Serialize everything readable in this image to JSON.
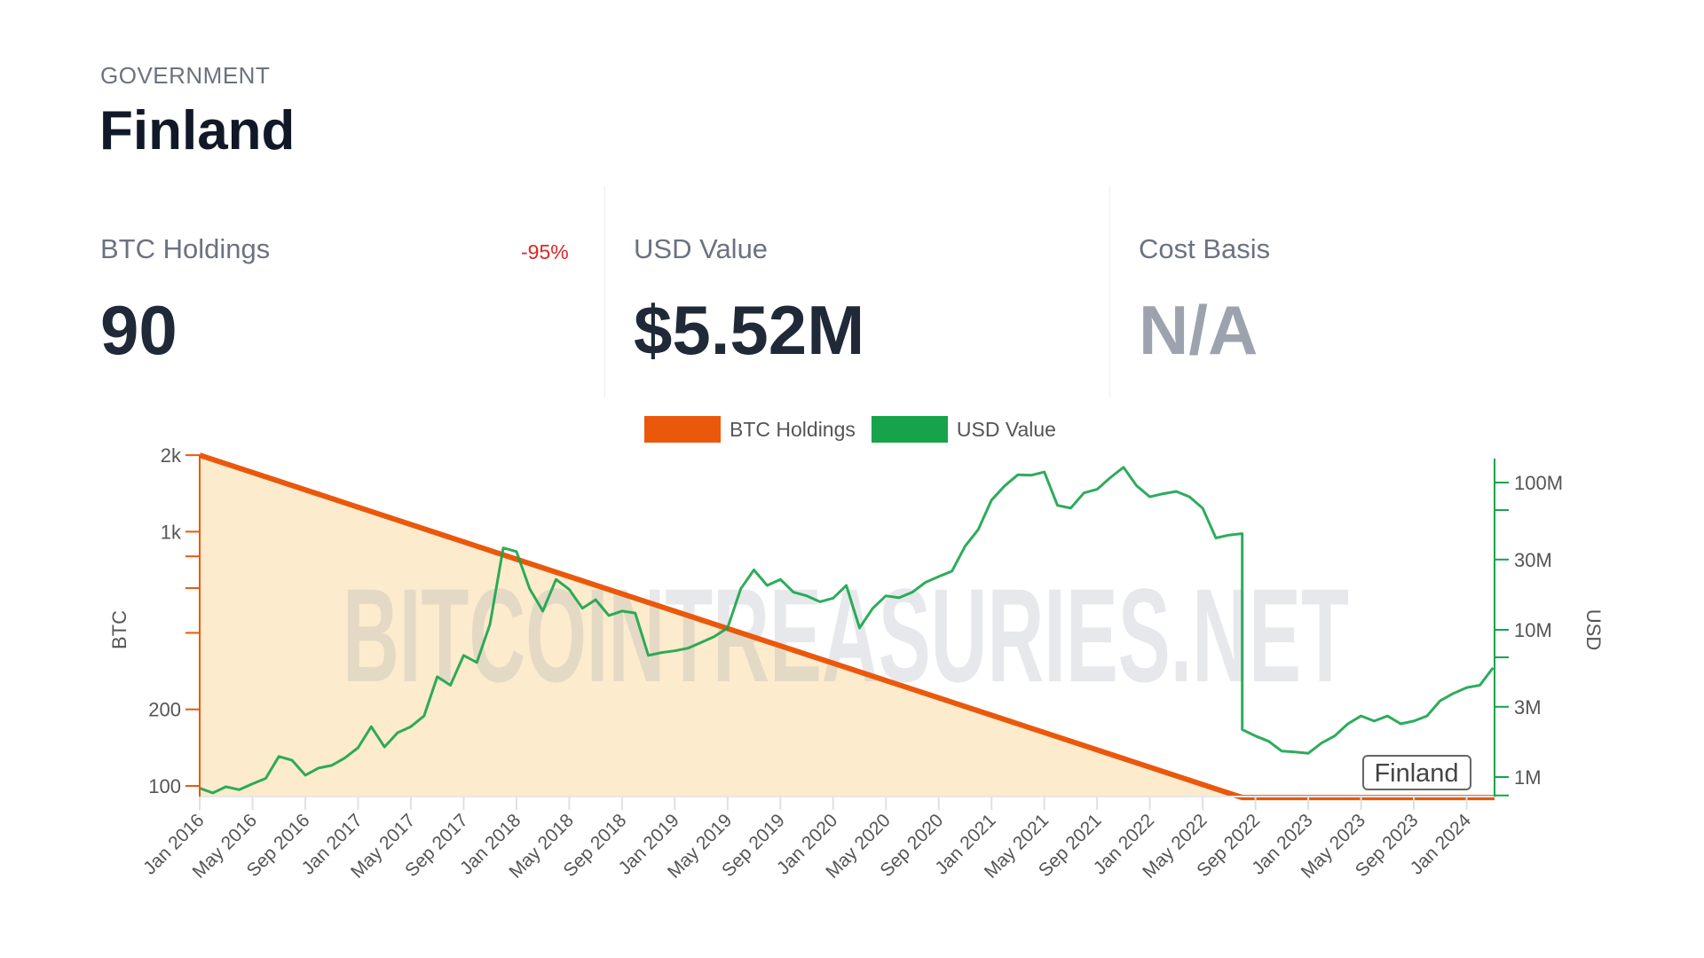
{
  "header": {
    "category": "GOVERNMENT",
    "title": "Finland"
  },
  "stats": [
    {
      "label": "BTC Holdings",
      "value": "90",
      "change": "-95%"
    },
    {
      "label": "USD Value",
      "value": "$5.52M"
    },
    {
      "label": "Cost Basis",
      "value": "N/A"
    }
  ],
  "colors": {
    "btc": "#EA580C",
    "usd": "#16A34A",
    "fill": "#FCEBCD",
    "change_negative": "#DC2626"
  },
  "watermark": "BITCOINTREASURIES.NET",
  "chart_data": {
    "type": "line",
    "legend": [
      "BTC Holdings",
      "USD Value"
    ],
    "legend_position": "top-center",
    "annotation": "Finland",
    "x_ticks": [
      "Jan 2016",
      "May 2016",
      "Sep 2016",
      "Jan 2017",
      "May 2017",
      "Sep 2017",
      "Jan 2018",
      "May 2018",
      "Sep 2018",
      "Jan 2019",
      "May 2019",
      "Sep 2019",
      "Jan 2020",
      "May 2020",
      "Sep 2020",
      "Jan 2021",
      "May 2021",
      "Sep 2021",
      "Jan 2022",
      "May 2022",
      "Sep 2022",
      "Jan 2023",
      "May 2023",
      "Sep 2023",
      "Jan 2024"
    ],
    "y_left": {
      "label": "BTC",
      "scale": "log",
      "range": [
        90,
        2000
      ],
      "ticks": [
        "2k",
        "1k",
        "200",
        "100"
      ],
      "tick_values": [
        2000,
        1000,
        200,
        100
      ],
      "minor_ticks": [
        800,
        600,
        400
      ]
    },
    "y_right": {
      "label": "USD",
      "scale": "log",
      "range": [
        740000,
        145000000
      ],
      "ticks": [
        "100M",
        "30M",
        "10M",
        "3M",
        "1M"
      ],
      "tick_values": [
        100000000,
        30000000,
        10000000,
        3000000,
        1000000
      ],
      "minor_ticks": [
        65000000,
        6500000,
        750000
      ]
    },
    "series": [
      {
        "name": "BTC Holdings",
        "axis": "left",
        "type": "area",
        "points": [
          [
            "2016-01",
            2000
          ],
          [
            "2022-08",
            90
          ],
          [
            "2024-03",
            90
          ]
        ]
      },
      {
        "name": "USD Value",
        "axis": "right",
        "type": "line",
        "points": [
          [
            "2016-01",
            840000
          ],
          [
            "2016-02",
            780000
          ],
          [
            "2016-03",
            860000
          ],
          [
            "2016-04",
            820000
          ],
          [
            "2016-05",
            900000
          ],
          [
            "2016-06",
            980000
          ],
          [
            "2016-07",
            1380000
          ],
          [
            "2016-08",
            1300000
          ],
          [
            "2016-09",
            1030000
          ],
          [
            "2016-10",
            1150000
          ],
          [
            "2016-11",
            1200000
          ],
          [
            "2016-12",
            1350000
          ],
          [
            "2017-01",
            1580000
          ],
          [
            "2017-02",
            2200000
          ],
          [
            "2017-03",
            1600000
          ],
          [
            "2017-04",
            2000000
          ],
          [
            "2017-05",
            2200000
          ],
          [
            "2017-06",
            2600000
          ],
          [
            "2017-07",
            4800000
          ],
          [
            "2017-08",
            4200000
          ],
          [
            "2017-09",
            6700000
          ],
          [
            "2017-10",
            6000000
          ],
          [
            "2017-11",
            10900000
          ],
          [
            "2017-12",
            36000000
          ],
          [
            "2018-01",
            34000000
          ],
          [
            "2018-02",
            19000000
          ],
          [
            "2018-03",
            13400000
          ],
          [
            "2018-04",
            22000000
          ],
          [
            "2018-05",
            18800000
          ],
          [
            "2018-06",
            14000000
          ],
          [
            "2018-07",
            16000000
          ],
          [
            "2018-08",
            12500000
          ],
          [
            "2018-09",
            13400000
          ],
          [
            "2018-10",
            13000000
          ],
          [
            "2018-11",
            6700000
          ],
          [
            "2018-12",
            7000000
          ],
          [
            "2019-01",
            7200000
          ],
          [
            "2019-02",
            7500000
          ],
          [
            "2019-03",
            8200000
          ],
          [
            "2019-04",
            9000000
          ],
          [
            "2019-05",
            10300000
          ],
          [
            "2019-06",
            19000000
          ],
          [
            "2019-07",
            25500000
          ],
          [
            "2019-08",
            20000000
          ],
          [
            "2019-09",
            22000000
          ],
          [
            "2019-10",
            18000000
          ],
          [
            "2019-11",
            17000000
          ],
          [
            "2019-12",
            15500000
          ],
          [
            "2020-01",
            16400000
          ],
          [
            "2020-02",
            20000000
          ],
          [
            "2020-03",
            10300000
          ],
          [
            "2020-04",
            14000000
          ],
          [
            "2020-05",
            17000000
          ],
          [
            "2020-06",
            16500000
          ],
          [
            "2020-07",
            18000000
          ],
          [
            "2020-08",
            21000000
          ],
          [
            "2020-09",
            23000000
          ],
          [
            "2020-10",
            25000000
          ],
          [
            "2020-11",
            37000000
          ],
          [
            "2020-12",
            48000000
          ],
          [
            "2021-01",
            76000000
          ],
          [
            "2021-02",
            95000000
          ],
          [
            "2021-03",
            113000000
          ],
          [
            "2021-04",
            112000000
          ],
          [
            "2021-05",
            118000000
          ],
          [
            "2021-06",
            70000000
          ],
          [
            "2021-07",
            67000000
          ],
          [
            "2021-08",
            85000000
          ],
          [
            "2021-09",
            90000000
          ],
          [
            "2021-10",
            108000000
          ],
          [
            "2021-11",
            127000000
          ],
          [
            "2021-12",
            95000000
          ],
          [
            "2022-01",
            80000000
          ],
          [
            "2022-02",
            84000000
          ],
          [
            "2022-03",
            87000000
          ],
          [
            "2022-04",
            80000000
          ],
          [
            "2022-05",
            67000000
          ],
          [
            "2022-06",
            42000000
          ],
          [
            "2022-07",
            44000000
          ],
          [
            "2022-08",
            45000000
          ],
          [
            "2022-08",
            2100000
          ],
          [
            "2022-09",
            1900000
          ],
          [
            "2022-10",
            1750000
          ],
          [
            "2022-11",
            1500000
          ],
          [
            "2022-12",
            1480000
          ],
          [
            "2023-01",
            1450000
          ],
          [
            "2023-02",
            1700000
          ],
          [
            "2023-03",
            1900000
          ],
          [
            "2023-04",
            2300000
          ],
          [
            "2023-05",
            2600000
          ],
          [
            "2023-06",
            2400000
          ],
          [
            "2023-07",
            2600000
          ],
          [
            "2023-08",
            2300000
          ],
          [
            "2023-09",
            2400000
          ],
          [
            "2023-10",
            2600000
          ],
          [
            "2023-11",
            3300000
          ],
          [
            "2023-12",
            3700000
          ],
          [
            "2024-01",
            4050000
          ],
          [
            "2024-02",
            4200000
          ],
          [
            "2024-03",
            5520000
          ]
        ]
      }
    ]
  }
}
